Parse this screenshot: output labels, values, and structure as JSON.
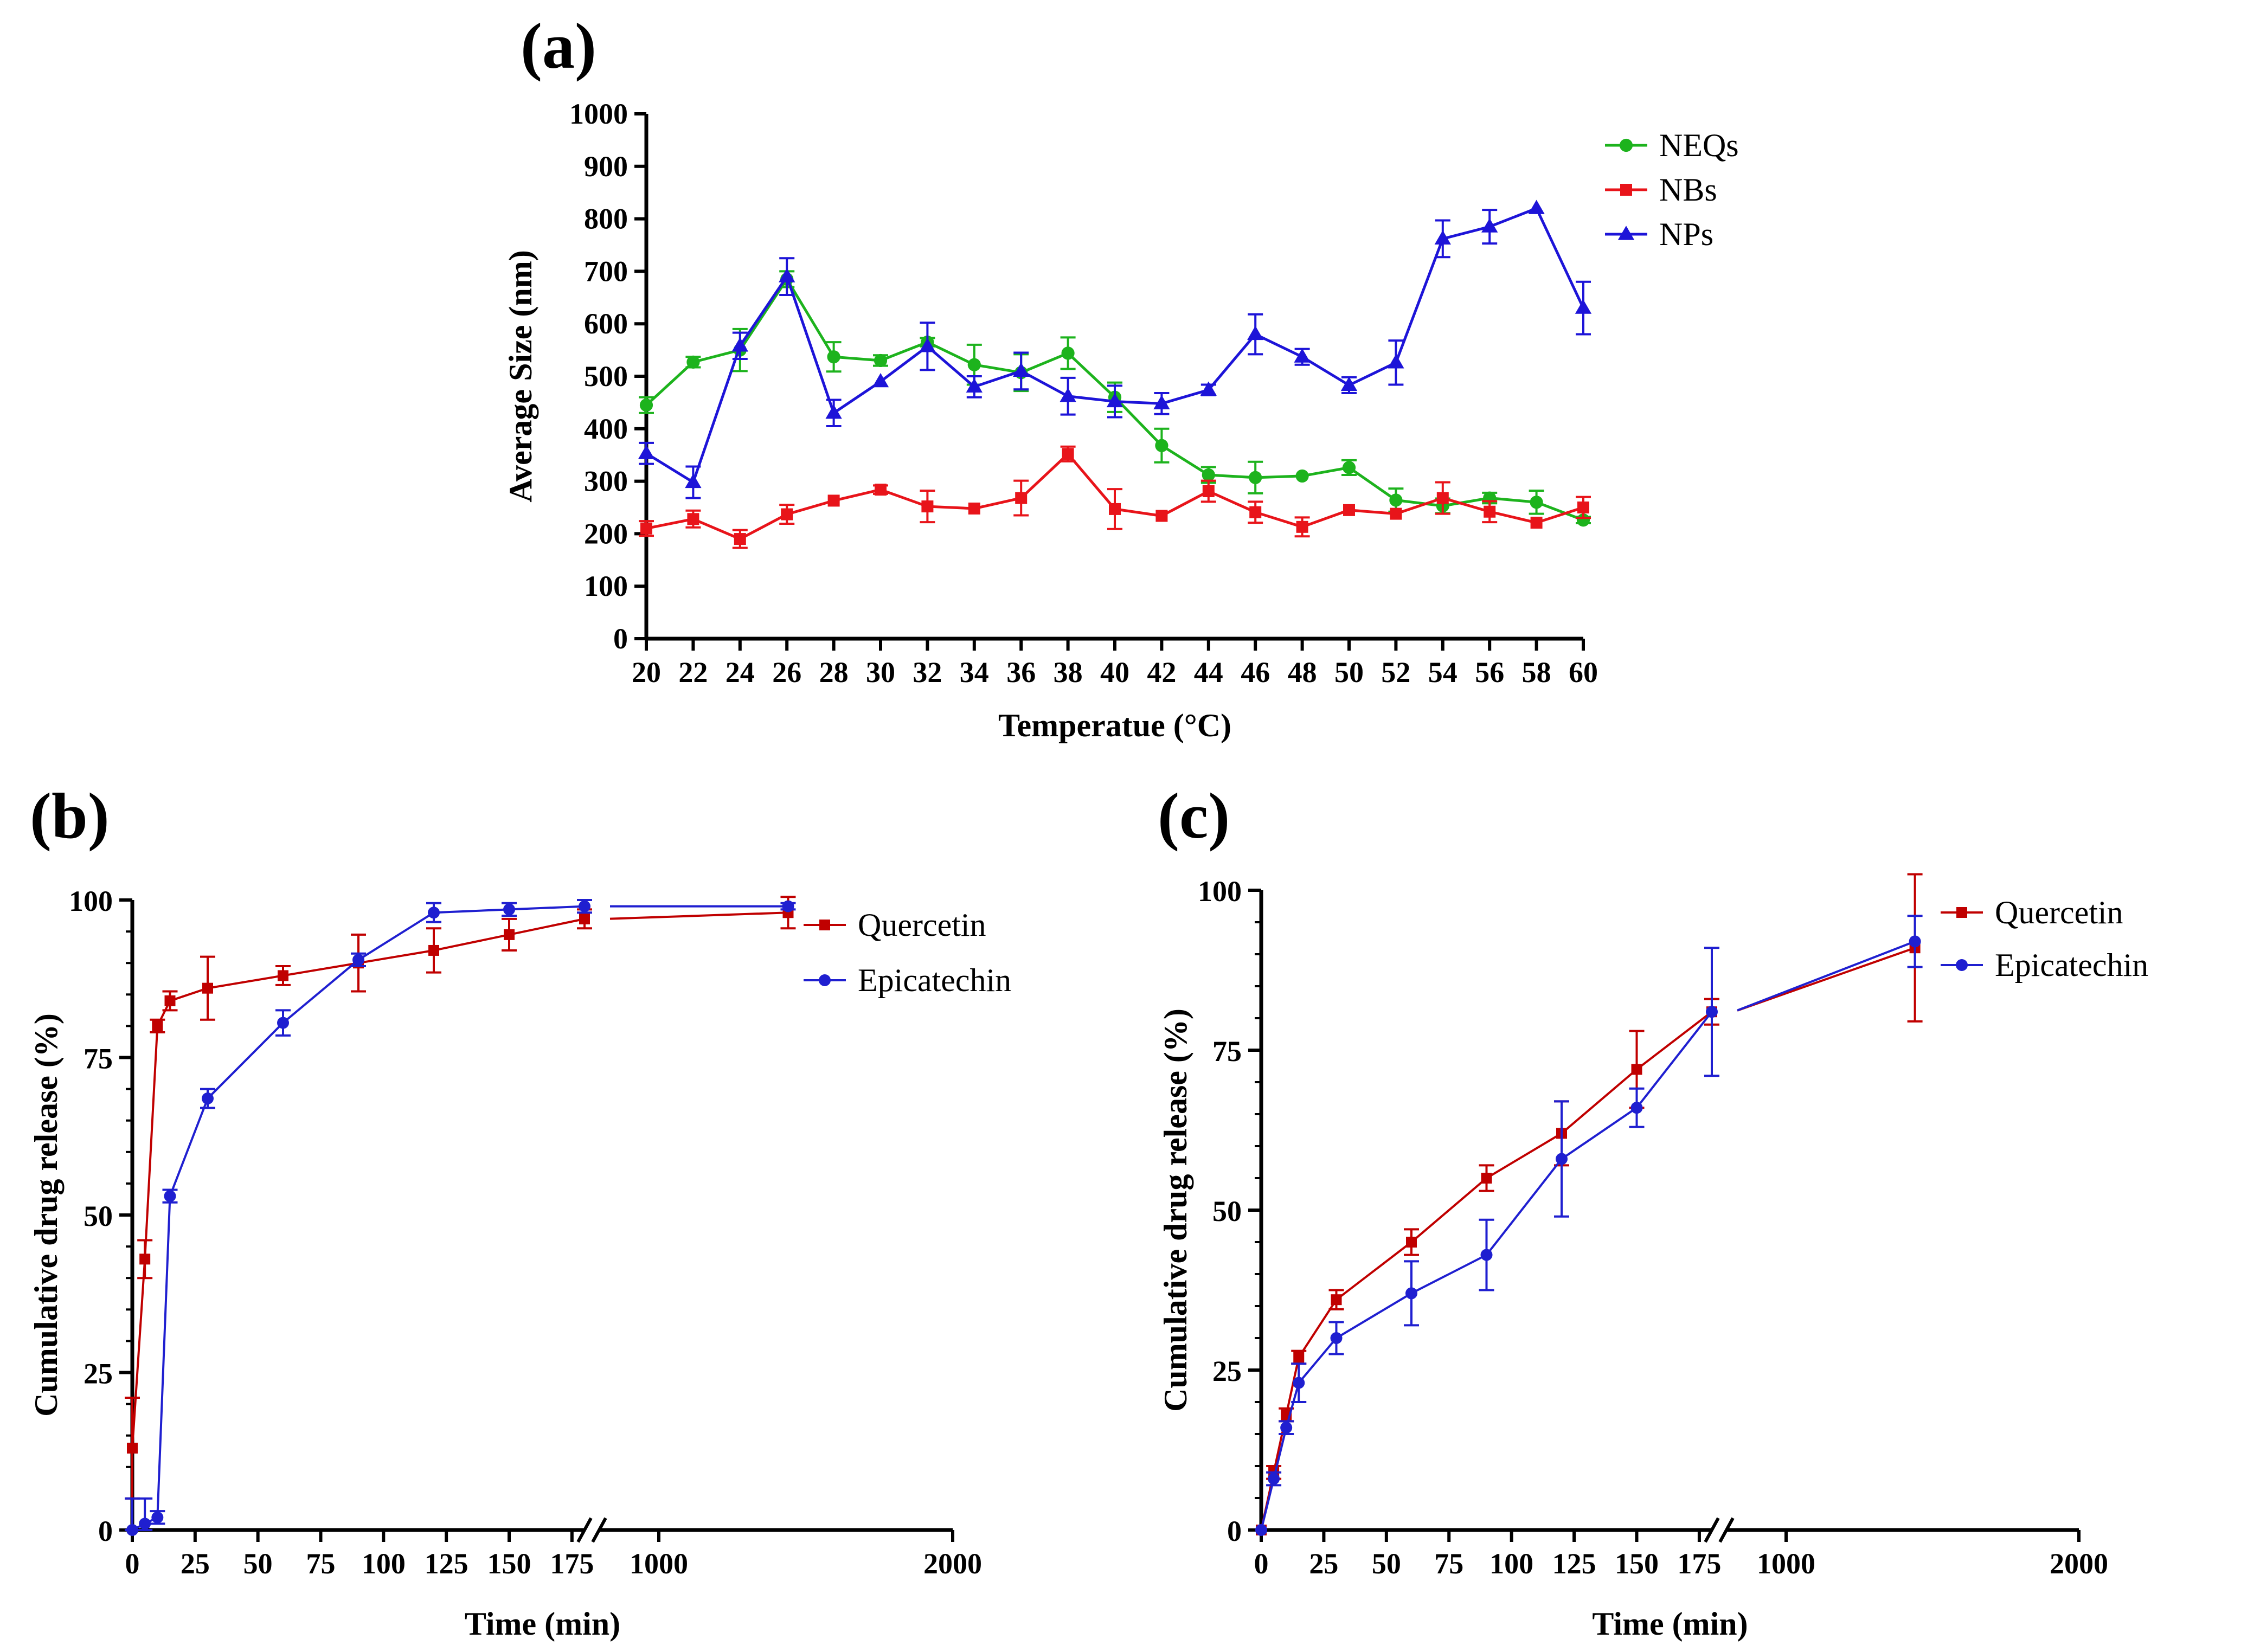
{
  "chart_data": [
    {
      "panel": "(a)",
      "type": "line",
      "title": "",
      "xlabel": "Temperatue (°C)",
      "ylabel": "Average Size (nm)",
      "xlim": [
        20,
        60
      ],
      "ylim": [
        0,
        1000
      ],
      "x_ticks": [
        "20",
        "22",
        "24",
        "26",
        "28",
        "30",
        "32",
        "34",
        "36",
        "38",
        "40",
        "42",
        "44",
        "46",
        "48",
        "50",
        "52",
        "54",
        "56",
        "58",
        "60"
      ],
      "y_ticks": [
        "0",
        "100",
        "200",
        "300",
        "400",
        "500",
        "600",
        "700",
        "800",
        "900",
        "1000"
      ],
      "x": [
        20,
        22,
        24,
        26,
        28,
        30,
        32,
        34,
        36,
        38,
        40,
        42,
        44,
        46,
        48,
        50,
        52,
        54,
        56,
        58,
        60
      ],
      "legend_position": "top-right",
      "series": [
        {
          "name": "NEQs",
          "color": "#1db31d",
          "marker": "circle",
          "values": [
            445,
            527,
            550,
            685,
            537,
            530,
            565,
            522,
            507,
            544,
            460,
            368,
            312,
            307,
            310,
            326,
            264,
            253,
            268,
            260,
            226
          ],
          "errors": [
            15,
            10,
            40,
            15,
            28,
            10,
            8,
            38,
            35,
            30,
            28,
            32,
            15,
            30,
            0,
            14,
            22,
            14,
            10,
            22,
            6
          ]
        },
        {
          "name": "NBs",
          "color": "#e8141a",
          "marker": "square",
          "values": [
            210,
            228,
            190,
            237,
            263,
            284,
            252,
            248,
            268,
            352,
            247,
            234,
            281,
            241,
            213,
            245,
            238,
            268,
            242,
            221,
            250
          ],
          "errors": [
            14,
            16,
            17,
            18,
            0,
            8,
            30,
            0,
            33,
            14,
            38,
            0,
            20,
            20,
            18,
            0,
            0,
            30,
            20,
            0,
            20
          ]
        },
        {
          "name": "NPs",
          "color": "#1d14d8",
          "marker": "triangle",
          "values": [
            353,
            298,
            558,
            690,
            430,
            490,
            557,
            480,
            510,
            462,
            452,
            448,
            474,
            580,
            537,
            483,
            526,
            762,
            785,
            820,
            630
          ],
          "errors": [
            20,
            30,
            25,
            35,
            25,
            0,
            45,
            20,
            35,
            35,
            30,
            20,
            10,
            38,
            15,
            15,
            42,
            35,
            32,
            0,
            50
          ]
        }
      ]
    },
    {
      "panel": "(b)",
      "type": "line",
      "title": "",
      "xlabel": "Time (min)",
      "ylabel": "Cumulative drug  release (%)",
      "ylim": [
        0,
        100
      ],
      "x_ticks": [
        "0",
        "25",
        "50",
        "75",
        "100",
        "125",
        "150",
        "175",
        "1000",
        "2000"
      ],
      "y_ticks": [
        "0",
        "25",
        "50",
        "75",
        "100"
      ],
      "x_axis_break": "between 175 and 1000",
      "x": [
        0,
        5,
        10,
        15,
        30,
        60,
        90,
        120,
        150,
        180,
        1440
      ],
      "legend_position": "top-right",
      "series": [
        {
          "name": "Quercetin",
          "color": "#c00000",
          "marker": "square",
          "values": [
            13,
            43,
            80,
            84,
            86,
            88,
            90,
            92,
            94.5,
            97,
            98
          ],
          "errors": [
            8,
            3,
            1,
            1.5,
            5,
            1.5,
            4.5,
            3.5,
            2.5,
            1.5,
            2.5
          ]
        },
        {
          "name": "Epicatechin",
          "color": "#1f1fd0",
          "marker": "circle",
          "values": [
            0,
            1,
            2,
            53,
            68.5,
            80.5,
            90.5,
            98,
            98.5,
            99,
            99
          ],
          "errors": [
            5,
            4,
            1,
            1,
            1.5,
            2,
            1,
            1.5,
            1,
            1,
            0.5
          ]
        }
      ]
    },
    {
      "panel": "(c)",
      "type": "line",
      "title": "",
      "xlabel": "Time (min)",
      "ylabel": "Cumulative drug  release (%)",
      "ylim": [
        0,
        100
      ],
      "x_ticks": [
        "0",
        "25",
        "50",
        "75",
        "100",
        "125",
        "150",
        "175",
        "1000",
        "2000"
      ],
      "y_ticks": [
        "0",
        "25",
        "50",
        "75",
        "100"
      ],
      "x_axis_break": "between 175 and 1000",
      "x": [
        0,
        5,
        10,
        15,
        30,
        60,
        90,
        120,
        150,
        180,
        1440
      ],
      "legend_position": "top-right",
      "series": [
        {
          "name": "Quercetin",
          "color": "#c00000",
          "marker": "square",
          "values": [
            0,
            9,
            18,
            27,
            36,
            45,
            55,
            62,
            72,
            81,
            91
          ],
          "errors": [
            0,
            1,
            1,
            1,
            1.5,
            2,
            2,
            5,
            6,
            2,
            11.5
          ]
        },
        {
          "name": "Epicatechin",
          "color": "#1f1fd0",
          "marker": "circle",
          "values": [
            0,
            8,
            16,
            23,
            30,
            37,
            43,
            58,
            66,
            81,
            92
          ],
          "errors": [
            0,
            1,
            1,
            3,
            2.5,
            5,
            5.5,
            9,
            3,
            10,
            4
          ]
        }
      ]
    }
  ]
}
